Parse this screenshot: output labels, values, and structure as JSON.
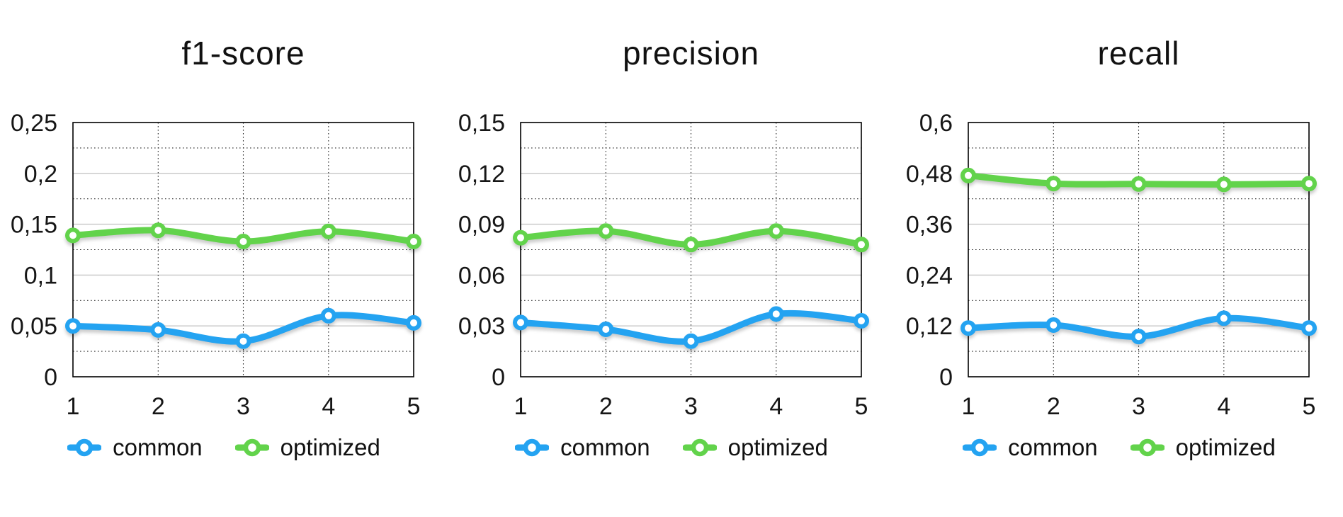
{
  "page": {
    "background": "#ffffff",
    "text_color": "#161616",
    "major_gridline_color": "#c6c6c6",
    "minor_gridline_color": "#2a2a2a",
    "axis_border_color": "#000000"
  },
  "chart_data": [
    {
      "type": "line",
      "title": "f1-score",
      "x": [
        1,
        2,
        3,
        4,
        5
      ],
      "x_tick_labels": [
        "1",
        "2",
        "3",
        "4",
        "5"
      ],
      "ylim": [
        0,
        0.25
      ],
      "y_tick_values": [
        0,
        0.05,
        0.1,
        0.15,
        0.2,
        0.25
      ],
      "y_tick_labels": [
        "0",
        "0,05",
        "0,1",
        "0,15",
        "0,2",
        "0,25"
      ],
      "grid": {
        "major_solid": true,
        "minor_dotted": true,
        "vertical_dotted": true
      },
      "legend_position": "bottom",
      "series": [
        {
          "name": "common",
          "label": "common",
          "color": "#24a3f1",
          "values": [
            0.05,
            0.046,
            0.035,
            0.06,
            0.053
          ]
        },
        {
          "name": "optimized",
          "label": "optimized",
          "color": "#62d34b",
          "values": [
            0.139,
            0.144,
            0.133,
            0.143,
            0.133
          ]
        }
      ]
    },
    {
      "type": "line",
      "title": "precision",
      "x": [
        1,
        2,
        3,
        4,
        5
      ],
      "x_tick_labels": [
        "1",
        "2",
        "3",
        "4",
        "5"
      ],
      "ylim": [
        0,
        0.15
      ],
      "y_tick_values": [
        0,
        0.03,
        0.06,
        0.09,
        0.12,
        0.15
      ],
      "y_tick_labels": [
        "0",
        "0,03",
        "0,06",
        "0,09",
        "0,12",
        "0,15"
      ],
      "grid": {
        "major_solid": true,
        "minor_dotted": true,
        "vertical_dotted": true
      },
      "legend_position": "bottom",
      "series": [
        {
          "name": "common",
          "label": "common",
          "color": "#24a3f1",
          "values": [
            0.032,
            0.028,
            0.021,
            0.037,
            0.033
          ]
        },
        {
          "name": "optimized",
          "label": "optimized",
          "color": "#62d34b",
          "values": [
            0.082,
            0.086,
            0.078,
            0.086,
            0.078
          ]
        }
      ]
    },
    {
      "type": "line",
      "title": "recall",
      "x": [
        1,
        2,
        3,
        4,
        5
      ],
      "x_tick_labels": [
        "1",
        "2",
        "3",
        "4",
        "5"
      ],
      "ylim": [
        0,
        0.6
      ],
      "y_tick_values": [
        0,
        0.12,
        0.24,
        0.36,
        0.48,
        0.6
      ],
      "y_tick_labels": [
        "0",
        "0,12",
        "0,24",
        "0,36",
        "0,48",
        "0,6"
      ],
      "grid": {
        "major_solid": true,
        "minor_dotted": true,
        "vertical_dotted": true
      },
      "legend_position": "bottom",
      "series": [
        {
          "name": "common",
          "label": "common",
          "color": "#24a3f1",
          "values": [
            0.115,
            0.122,
            0.095,
            0.138,
            0.115
          ]
        },
        {
          "name": "optimized",
          "label": "optimized",
          "color": "#62d34b",
          "values": [
            0.475,
            0.456,
            0.455,
            0.454,
            0.456
          ]
        }
      ]
    }
  ]
}
